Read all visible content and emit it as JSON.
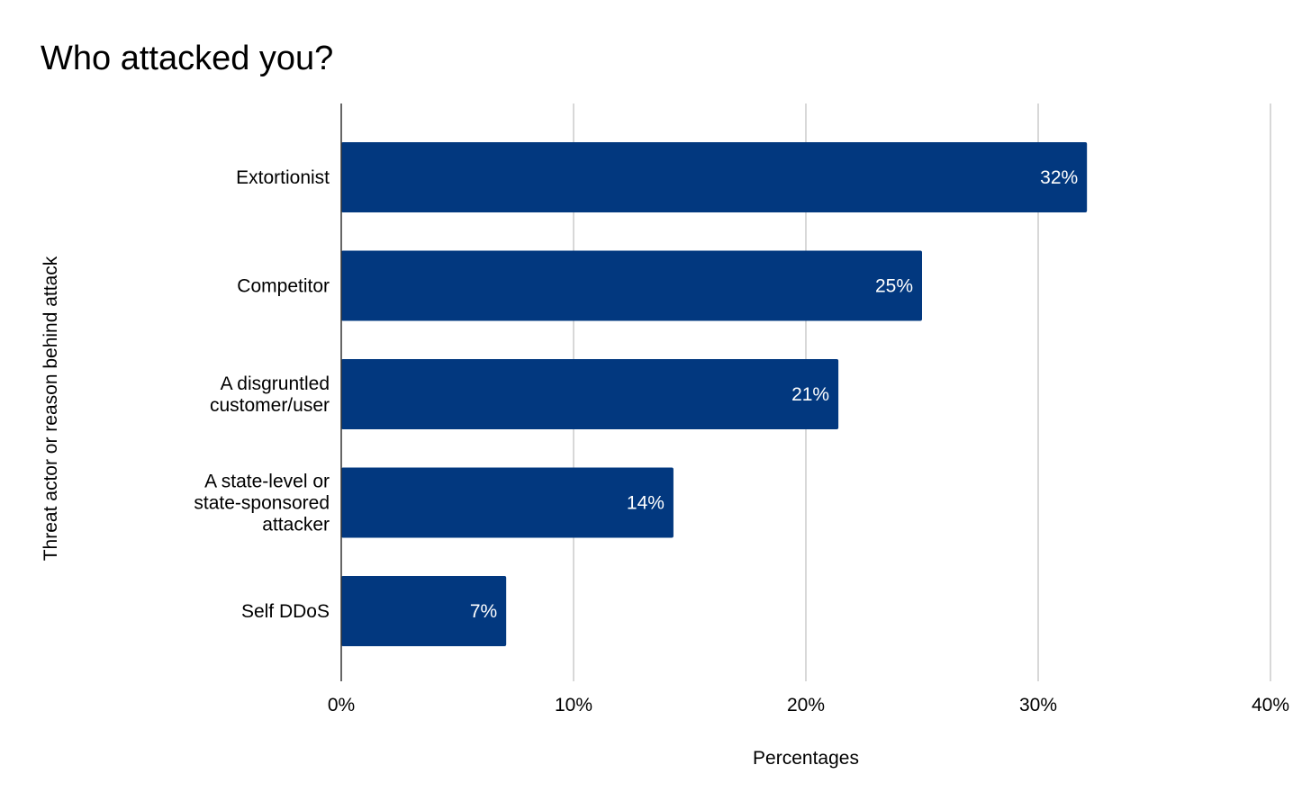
{
  "chart_data": {
    "type": "bar",
    "orientation": "horizontal",
    "title": "Who attacked you?",
    "xlabel": "Percentages",
    "ylabel": "Threat actor or reason behind attack",
    "categories": [
      [
        "Extortionist"
      ],
      [
        "Competitor"
      ],
      [
        "A disgruntled",
        "customer/user"
      ],
      [
        "A state-level or",
        "state-sponsored",
        "attacker"
      ],
      [
        "Self DDoS"
      ]
    ],
    "values": [
      32,
      25,
      21,
      14,
      7
    ],
    "data_labels": [
      "32%",
      "25%",
      "21%",
      "14%",
      "7%"
    ],
    "xlim": [
      0,
      40
    ],
    "ticks": [
      0,
      10,
      20,
      30,
      40
    ],
    "tick_labels": [
      "0%",
      "10%",
      "20%",
      "30%",
      "40%"
    ],
    "grid": true,
    "legend": "none",
    "bar_color": "#02387f",
    "bar_actual_values": [
      32.1,
      25,
      21.4,
      14.3,
      7.1
    ]
  }
}
